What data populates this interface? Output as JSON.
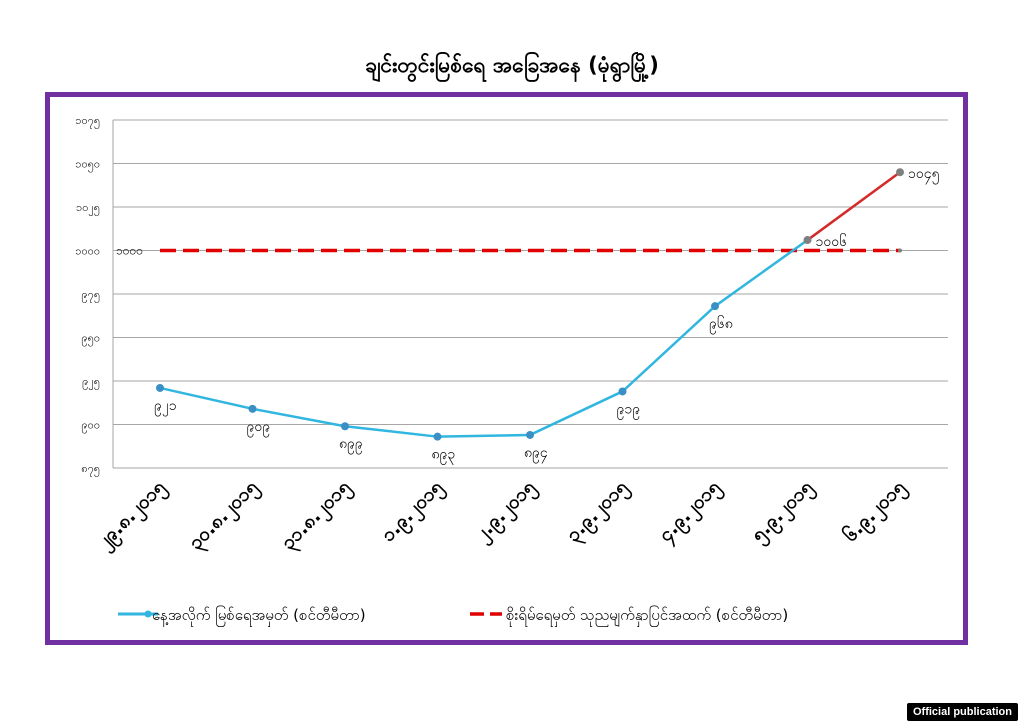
{
  "chart_data": {
    "type": "line",
    "title": "ချင်းတွင်းမြစ်ရေ အခြေအနေ (မုံရွာမြို့)",
    "x_labels": [
      "၂၉.၈.၂၀၁၅",
      "၃၀.၈.၂၀၁၅",
      "၃၁.၈.၂၀၁၅",
      "၁.၉.၂၀၁၅",
      "၂.၉.၂၀၁၅",
      "၃.၉.၂၀၁၅",
      "၄.၉.၂၀၁၅",
      "၅.၉.၂၀၁၅",
      "၆.၉.၂၀၁၅"
    ],
    "y_ticks": [
      {
        "value": 875,
        "label": "၈၇၅"
      },
      {
        "value": 900,
        "label": "၉၀၀"
      },
      {
        "value": 925,
        "label": "၉၂၅"
      },
      {
        "value": 950,
        "label": "၉၅၀"
      },
      {
        "value": 975,
        "label": "၉၇၅"
      },
      {
        "value": 1000,
        "label": "၁၀၀၀"
      },
      {
        "value": 1025,
        "label": "၁၀၂၅"
      },
      {
        "value": 1050,
        "label": "၁၀၅၀"
      },
      {
        "value": 1075,
        "label": "၁၀၇၅"
      }
    ],
    "ylim": [
      875,
      1075
    ],
    "grid": true,
    "legend_position": "bottom",
    "series": [
      {
        "name": "နေ့အလိုက် မြစ်ရေအမှတ် (စင်တီမီတာ)",
        "color": "#31b6e0",
        "above_danger_color": "#d42a2a",
        "values": [
          921,
          909,
          899,
          893,
          894,
          919,
          968,
          1006,
          1045
        ],
        "labels": [
          "၉၂၁",
          "၉၀၉",
          "၈၉၉",
          "၈၉၃",
          "၈၉၄",
          "၉၁၉",
          "၉၆၈",
          "၁၀၀၆",
          "၁၀၄၅"
        ]
      },
      {
        "name": "စိုးရိမ်ရေမှတ် သုညမျက်နှာပြင်အထက် (စင်တီမီတာ)",
        "color": "#e00000",
        "dashed": true,
        "values": [
          1000,
          1000,
          1000,
          1000,
          1000,
          1000,
          1000,
          1000,
          1000
        ],
        "start_label": "၁၀၀၀"
      }
    ]
  },
  "footer": {
    "badge": "Official publication"
  }
}
